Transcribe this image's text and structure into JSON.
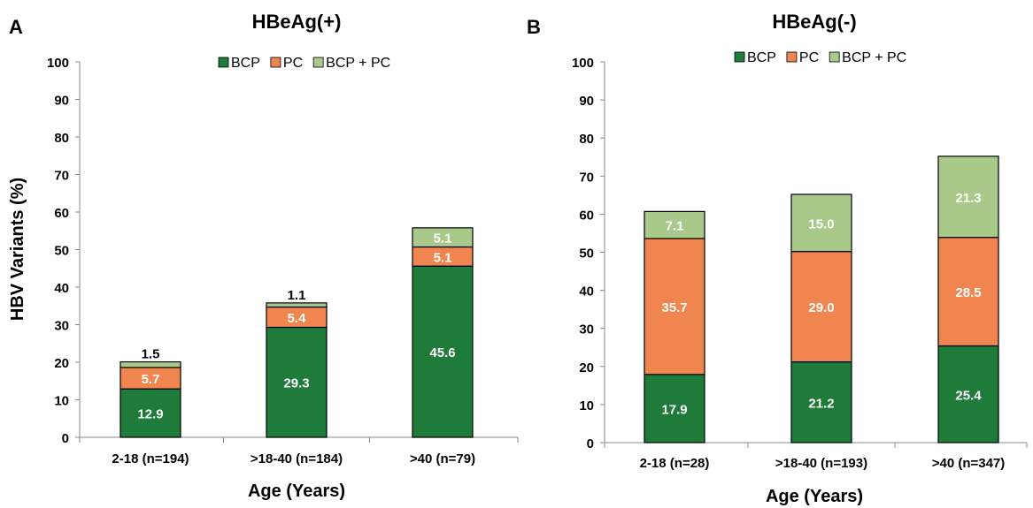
{
  "shared": {
    "ylabel": "HBV Variants (%)",
    "colors": {
      "BCP": "#1e7b3a",
      "PC": "#f08550",
      "BCP + PC": "#a9c98a"
    }
  },
  "chart_data": [
    {
      "type": "bar",
      "stacked": true,
      "panel_letter": "A",
      "title": "HBeAg(+)",
      "xlabel": "Age (Years)",
      "ylabel": "HBV Variants (%)",
      "ylim": [
        0,
        100
      ],
      "yticks": [
        0,
        10,
        20,
        30,
        40,
        50,
        60,
        70,
        80,
        90,
        100
      ],
      "grid": false,
      "legend": "top-center",
      "categories": [
        "2-18 (n=194)",
        ">18-40 (n=184)",
        ">40 (n=79)"
      ],
      "series": [
        {
          "name": "BCP",
          "color": "#1e7b3a",
          "values": [
            12.9,
            29.3,
            45.6
          ]
        },
        {
          "name": "PC",
          "color": "#f08550",
          "values": [
            5.7,
            5.4,
            5.1
          ]
        },
        {
          "name": "BCP + PC",
          "color": "#a9c98a",
          "values": [
            1.5,
            1.1,
            5.1
          ]
        }
      ],
      "data_labels": [
        [
          "12.9",
          "29.3",
          "45.6"
        ],
        [
          "5.7",
          "5.4",
          "5.1"
        ],
        [
          "1.5",
          "1.1",
          "5.1"
        ]
      ]
    },
    {
      "type": "bar",
      "stacked": true,
      "panel_letter": "B",
      "title": "HBeAg(-)",
      "xlabel": "Age (Years)",
      "ylabel": "",
      "ylim": [
        0,
        100
      ],
      "yticks": [
        0,
        10,
        20,
        30,
        40,
        50,
        60,
        70,
        80,
        90,
        100
      ],
      "grid": false,
      "legend": "top-center",
      "categories": [
        "2-18 (n=28)",
        ">18-40 (n=193)",
        ">40 (n=347)"
      ],
      "series": [
        {
          "name": "BCP",
          "color": "#1e7b3a",
          "values": [
            17.9,
            21.2,
            25.4
          ]
        },
        {
          "name": "PC",
          "color": "#f08550",
          "values": [
            35.7,
            29.0,
            28.5
          ]
        },
        {
          "name": "BCP + PC",
          "color": "#a9c98a",
          "values": [
            7.1,
            15.0,
            21.3
          ]
        }
      ],
      "data_labels": [
        [
          "17.9",
          "21.2",
          "25.4"
        ],
        [
          "35.7",
          "29.0",
          "28.5"
        ],
        [
          "7.1",
          "15.0",
          "21.3"
        ]
      ]
    }
  ]
}
